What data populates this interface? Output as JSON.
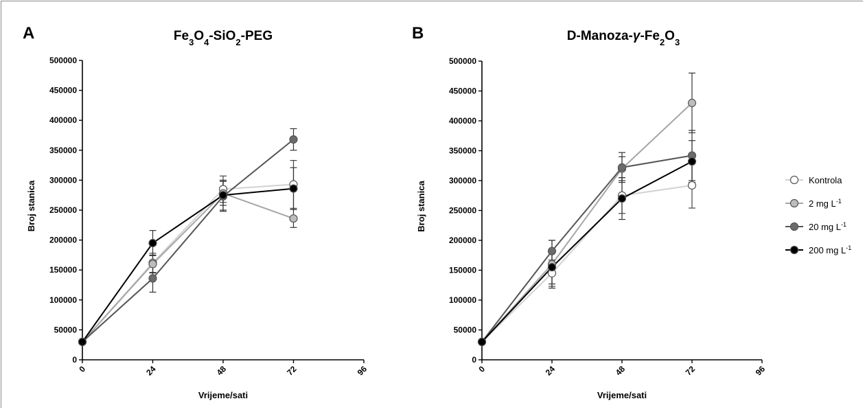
{
  "chart_data": [
    {
      "type": "line",
      "panel_letter": "A",
      "title": "Fe3O4-SiO2-PEG",
      "title_parts": [
        {
          "t": "Fe",
          "sub": false
        },
        {
          "t": "3",
          "sub": true
        },
        {
          "t": "O",
          "sub": false
        },
        {
          "t": "4",
          "sub": true
        },
        {
          "t": "-SiO",
          "sub": false
        },
        {
          "t": "2",
          "sub": true
        },
        {
          "t": "-PEG",
          "sub": false
        }
      ],
      "xlabel": "Vrijeme/sati",
      "ylabel": "Broj stanica",
      "xlim": [
        0,
        96
      ],
      "ylim": [
        0,
        500000
      ],
      "xticks": [
        0,
        24,
        48,
        72,
        96
      ],
      "yticks": [
        0,
        50000,
        100000,
        150000,
        200000,
        250000,
        300000,
        350000,
        400000,
        450000,
        500000
      ],
      "x": [
        0,
        24,
        48,
        72
      ],
      "series": [
        {
          "name": "Kontrola",
          "color": "#ffffff",
          "line_color": "#d2d2d2",
          "values": [
            30000,
            162000,
            285000,
            293000
          ],
          "errors": [
            0,
            16000,
            22000,
            40000
          ]
        },
        {
          "name": "2 mg L-1",
          "color": "#bdbdbd",
          "line_color": "#a6a6a6",
          "values": [
            30000,
            160000,
            278000,
            236000
          ],
          "errors": [
            0,
            15000,
            20000,
            15000
          ]
        },
        {
          "name": "20 mg L-1",
          "color": "#6b6b6b",
          "line_color": "#555555",
          "values": [
            30000,
            136000,
            273000,
            368000
          ],
          "errors": [
            0,
            23000,
            25000,
            18000
          ]
        },
        {
          "name": "200 mg L-1",
          "color": "#000000",
          "line_color": "#000000",
          "values": [
            30000,
            195000,
            275000,
            286000
          ],
          "errors": [
            0,
            21000,
            25000,
            35000
          ]
        }
      ]
    },
    {
      "type": "line",
      "panel_letter": "B",
      "title": "D-Manoza-γ-Fe2O3",
      "title_parts": [
        {
          "t": "D-Manoza-",
          "sub": false
        },
        {
          "t": "γ",
          "sub": false,
          "italic": true
        },
        {
          "t": "-Fe",
          "sub": false
        },
        {
          "t": "2",
          "sub": true
        },
        {
          "t": "O",
          "sub": false
        },
        {
          "t": "3",
          "sub": true
        }
      ],
      "xlabel": "Vrijeme/sati",
      "ylabel": "Broj stanica",
      "xlim": [
        0,
        96
      ],
      "ylim": [
        0,
        500000
      ],
      "xticks": [
        0,
        24,
        48,
        72,
        96
      ],
      "yticks": [
        0,
        50000,
        100000,
        150000,
        200000,
        250000,
        300000,
        350000,
        400000,
        450000,
        500000
      ],
      "x": [
        0,
        24,
        48,
        72
      ],
      "series": [
        {
          "name": "Kontrola",
          "color": "#ffffff",
          "line_color": "#d2d2d2",
          "values": [
            30000,
            145000,
            275000,
            292000
          ],
          "errors": [
            0,
            22000,
            30000,
            38000
          ]
        },
        {
          "name": "2 mg L-1",
          "color": "#bdbdbd",
          "line_color": "#a6a6a6",
          "values": [
            30000,
            160000,
            320000,
            430000
          ],
          "errors": [
            0,
            40000,
            20000,
            50000
          ]
        },
        {
          "name": "20 mg L-1",
          "color": "#6b6b6b",
          "line_color": "#555555",
          "values": [
            30000,
            182000,
            322000,
            342000
          ],
          "errors": [
            0,
            18000,
            25000,
            42000
          ]
        },
        {
          "name": "200 mg L-1",
          "color": "#000000",
          "line_color": "#000000",
          "values": [
            30000,
            155000,
            270000,
            332000
          ],
          "errors": [
            0,
            28000,
            35000,
            35000
          ]
        }
      ]
    }
  ],
  "legend": {
    "placement": "right",
    "items": [
      {
        "label": "Kontrola",
        "unit_sup": "",
        "color": "#ffffff",
        "line_color": "#d2d2d2"
      },
      {
        "label": "2 mg L",
        "unit_sup": "-1",
        "color": "#bdbdbd",
        "line_color": "#a6a6a6"
      },
      {
        "label": "20 mg L",
        "unit_sup": "-1",
        "color": "#6b6b6b",
        "line_color": "#555555"
      },
      {
        "label": "200 mg L",
        "unit_sup": "-1",
        "color": "#000000",
        "line_color": "#000000"
      }
    ]
  }
}
